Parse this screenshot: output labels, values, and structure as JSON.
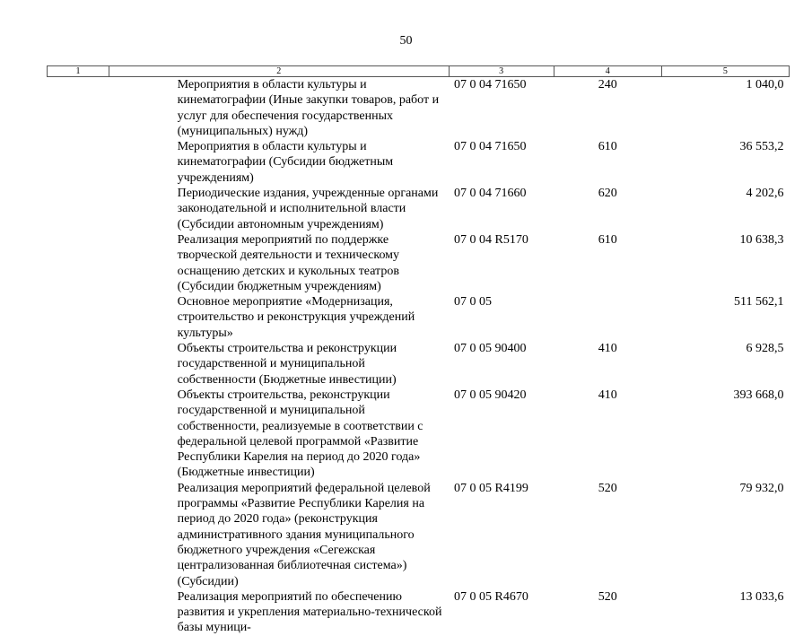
{
  "page_number": "50",
  "headers": [
    "1",
    "2",
    "3",
    "4",
    "5"
  ],
  "rows": [
    {
      "name": "Мероприятия в области культуры и кинематографии (Иные закупки товаров, работ и услуг для обеспечения государственных (муниципальных) нужд)",
      "code": "07 0 04 71650",
      "type": "240",
      "amount": "1 040,0"
    },
    {
      "name": "Мероприятия в области культуры и кинематографии (Субсидии бюджетным учреждениям)",
      "code": "07 0 04 71650",
      "type": "610",
      "amount": "36 553,2"
    },
    {
      "name": "Периодические издания, учрежденные органами законодательной и исполнительной власти (Субсидии автономным учреждениям)",
      "code": "07 0 04 71660",
      "type": "620",
      "amount": "4 202,6"
    },
    {
      "name": "Реализация мероприятий по поддержке творческой деятельности и техническому оснащению детских и кукольных театров (Субсидии бюджетным учреждениям)",
      "code": "07 0 04 R5170",
      "type": "610",
      "amount": "10 638,3"
    },
    {
      "name": "Основное мероприятие «Модернизация, строительство и реконструкция учреждений культуры»",
      "code": "07 0 05",
      "type": "",
      "amount": "511 562,1"
    },
    {
      "name": "Объекты строительства и реконструкции государственной и муниципальной собственности (Бюджетные инвестиции)",
      "code": "07 0 05 90400",
      "type": "410",
      "amount": "6 928,5"
    },
    {
      "name": "Объекты строительства, реконструкции государственной и муниципальной собственности, реализуемые в соответствии с федеральной целевой программой «Развитие Республики Карелия на период до 2020 года» (Бюджетные инвестиции)",
      "code": "07 0 05 90420",
      "type": "410",
      "amount": "393 668,0"
    },
    {
      "name": "Реализация мероприятий федеральной целевой программы «Развитие Республики Карелия на период до 2020 года» (реконструкция административного здания муниципального бюджетного учреждения «Сегежская централизованная библиотечная система») (Субсидии)",
      "code": "07 0 05 R4199",
      "type": "520",
      "amount": "79 932,0"
    },
    {
      "name": "Реализация мероприятий по обеспечению развития и укрепления материально-технической базы муници-",
      "code": "07 0 05 R4670",
      "type": "520",
      "amount": "13 033,6"
    }
  ]
}
